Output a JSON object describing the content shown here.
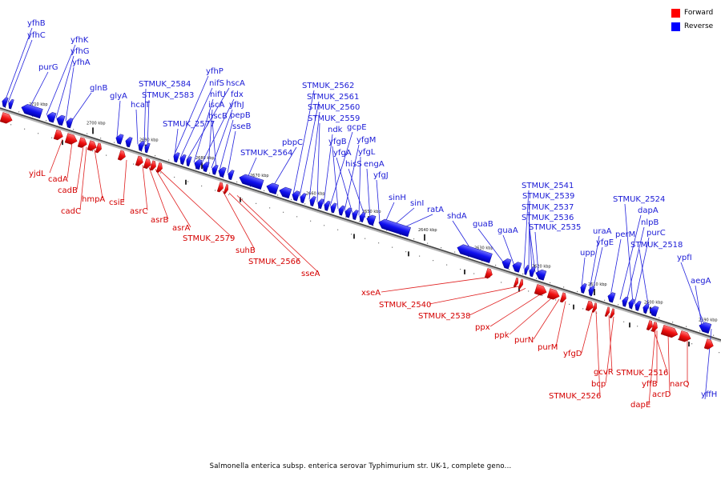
{
  "legend": {
    "forward_label": "Forward",
    "reverse_label": "Reverse",
    "forward_color": "#ff0000",
    "reverse_color": "#0000ff"
  },
  "caption": "Salmonella enterica subsp. enterica serovar Typhimurium str. UK-1, complete geno...",
  "axis_ticks": [
    "2710 kbp",
    "2700 kbp",
    "2690 kbp",
    "2680 kbp",
    "2670 kbp",
    "2660 kbp",
    "2650 kbp",
    "2640 kbp",
    "2630 kbp",
    "2620 kbp",
    "2610 kbp",
    "2600 kbp",
    "2590 kbp"
  ],
  "forward_genes": [
    "yjdL",
    "cadA",
    "cadB",
    "cadC",
    "hmpA",
    "csiE",
    "asrC",
    "asrB",
    "asrA",
    "STMUK_2579",
    "suhB",
    "STMUK_2566",
    "sseA",
    "xseA",
    "STMUK_2540",
    "STMUK_2538",
    "ppx",
    "ppk",
    "purN",
    "purM",
    "yfgD",
    "STMUK_2526",
    "gcvR",
    "bcp",
    "STMUK_2516",
    "yffB",
    "acrD",
    "dapE",
    "narQ"
  ],
  "reverse_genes": [
    "yfhB",
    "yfhC",
    "purG",
    "yfhK",
    "yfhG",
    "yfhA",
    "glnB",
    "glyA",
    "hcaT",
    "STMUK_2584",
    "STMUK_2583",
    "yfhP",
    "nifS",
    "hscA",
    "nifU",
    "fdx",
    "iscA",
    "yfhJ",
    "hscB",
    "pepB",
    "sseB",
    "STMUK_2577",
    "STMUK_2564",
    "pbpC",
    "STMUK_2562",
    "STMUK_2561",
    "STMUK_2560",
    "STMUK_2559",
    "ndk",
    "gcpE",
    "yfgB",
    "yfgM",
    "yfgA",
    "yfgL",
    "hisS",
    "engA",
    "yfgJ",
    "sinH",
    "sinI",
    "ratA",
    "shdA",
    "guaB",
    "guaA",
    "STMUK_2541",
    "STMUK_2539",
    "STMUK_2537",
    "STMUK_2536",
    "STMUK_2535",
    "upp",
    "uraA",
    "yfgE",
    "STMUK_2524",
    "perM",
    "dapA",
    "nlpB",
    "purC",
    "STMUK_2518",
    "ypfI",
    "aegA",
    "yffH"
  ]
}
